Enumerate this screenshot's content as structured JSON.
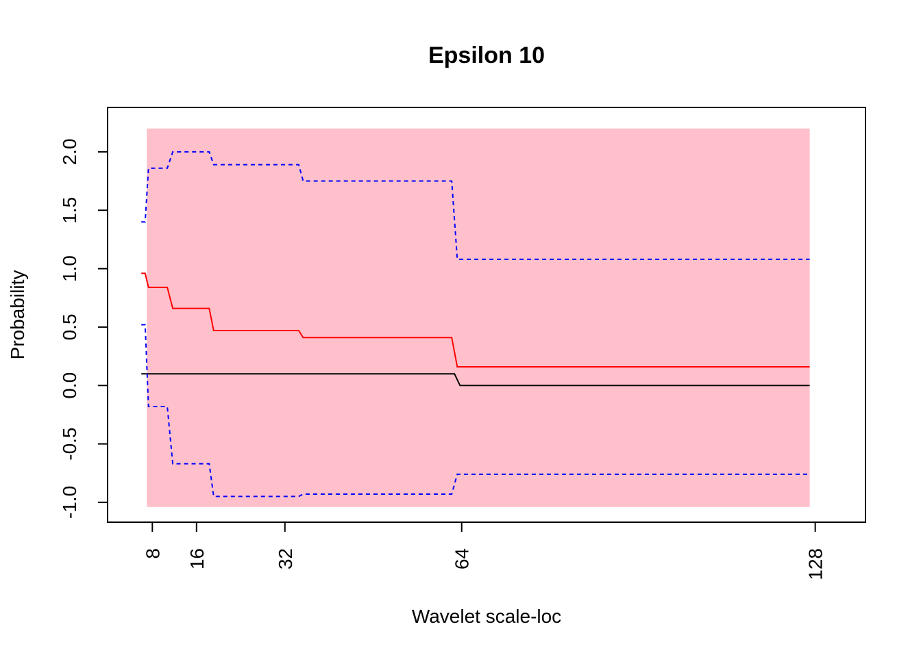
{
  "chart_data": {
    "type": "line",
    "title": "Epsilon 10",
    "xlabel": "Wavelet scale-loc",
    "ylabel": "Probability",
    "xlim": [
      -0.1,
      137.1
    ],
    "ylim": [
      -1.17,
      2.38
    ],
    "x_ticks": [
      {
        "value": 8,
        "label": "8"
      },
      {
        "value": 16,
        "label": "16"
      },
      {
        "value": 32,
        "label": "32"
      },
      {
        "value": 64,
        "label": "64"
      },
      {
        "value": 128,
        "label": "128"
      }
    ],
    "y_ticks": [
      {
        "value": -1.0,
        "label": "-1.0"
      },
      {
        "value": -0.5,
        "label": "-0.5"
      },
      {
        "value": 0.0,
        "label": "0.0"
      },
      {
        "value": 0.5,
        "label": "0.5"
      },
      {
        "value": 1.0,
        "label": "1.0"
      },
      {
        "value": 1.5,
        "label": "1.5"
      },
      {
        "value": 2.0,
        "label": "2.0"
      }
    ],
    "shaded_region": {
      "x": [
        7,
        127
      ],
      "y": [
        -1.04,
        2.2
      ],
      "color": "#FFC0CB"
    },
    "series": [
      {
        "color": "#000000",
        "dash": "solid",
        "x": [
          6,
          62.7,
          63.7,
          127
        ],
        "y": [
          0.1,
          0.1,
          0.0,
          0.0
        ]
      },
      {
        "color": "#FF0000",
        "dash": "solid",
        "x": [
          6,
          6.7,
          7.3,
          10.7,
          11.7,
          18.3,
          19.1,
          34.5,
          35.3,
          62.2,
          63.2,
          127
        ],
        "y": [
          0.96,
          0.96,
          0.84,
          0.84,
          0.66,
          0.66,
          0.47,
          0.47,
          0.41,
          0.41,
          0.16,
          0.16
        ]
      },
      {
        "color": "#0000FF",
        "dash": "dashed",
        "x": [
          6,
          6.7,
          7.3,
          10.7,
          11.7,
          18.3,
          19.1,
          34.5,
          35.3,
          62.2,
          63.2,
          127
        ],
        "y": [
          1.4,
          1.4,
          1.86,
          1.86,
          2.0,
          2.0,
          1.89,
          1.89,
          1.75,
          1.75,
          1.08,
          1.08
        ]
      },
      {
        "color": "#0000FF",
        "dash": "dashed",
        "x": [
          6,
          6.7,
          7.3,
          10.7,
          11.7,
          18.3,
          19.1,
          34.5,
          35.3,
          62.2,
          63.2,
          127
        ],
        "y": [
          0.52,
          0.52,
          -0.18,
          -0.18,
          -0.67,
          -0.67,
          -0.95,
          -0.95,
          -0.93,
          -0.93,
          -0.76,
          -0.76
        ]
      }
    ]
  }
}
